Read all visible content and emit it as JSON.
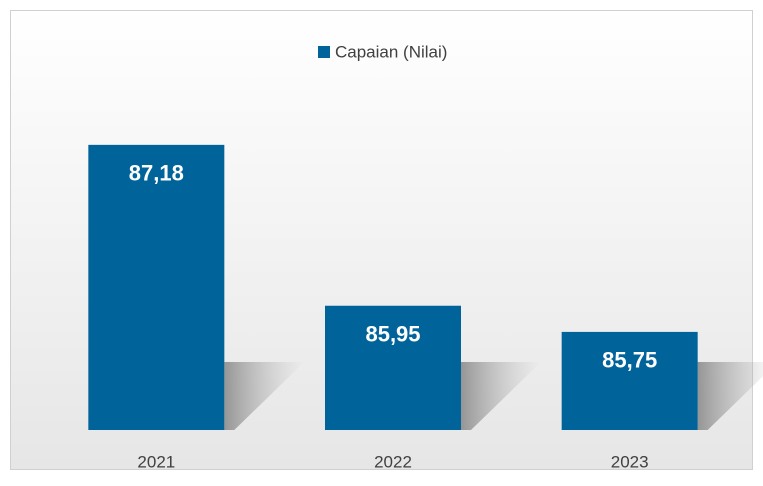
{
  "chart_data": {
    "type": "bar",
    "categories": [
      "2021",
      "2022",
      "2023"
    ],
    "series": [
      {
        "name": "Capaian (Nilai)",
        "color": "#00639a",
        "values": [
          87.18,
          85.95,
          85.75
        ],
        "value_labels": [
          "87,18",
          "85,95",
          "85,75"
        ]
      }
    ],
    "ylim": [
      85,
      87.5
    ],
    "legend": "top"
  }
}
